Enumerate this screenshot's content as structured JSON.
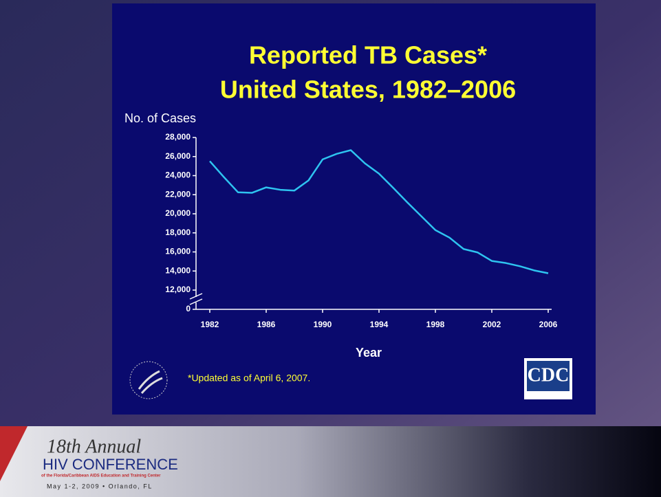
{
  "chart_data": {
    "type": "line",
    "title": [
      "Reported TB Cases*",
      "United States, 1982–2006"
    ],
    "ylabel": "No. of Cases",
    "xlabel": "Year",
    "footnote": "*Updated as of April 6, 2007.",
    "x": [
      1982,
      1983,
      1984,
      1985,
      1986,
      1987,
      1988,
      1989,
      1990,
      1991,
      1992,
      1993,
      1994,
      1995,
      1996,
      1997,
      1998,
      1999,
      2000,
      2001,
      2002,
      2003,
      2004,
      2005,
      2006
    ],
    "series": [
      {
        "color": "#2ec4f0",
        "values": [
          25520,
          23846,
          22255,
          22201,
          22768,
          22517,
          22436,
          23495,
          25701,
          26283,
          26673,
          25287,
          24205,
          22726,
          21210,
          19751,
          18286,
          17500,
          16308,
          15945,
          15055,
          14835,
          14499,
          14065,
          13767
        ]
      }
    ],
    "xlim": [
      1982,
      2006
    ],
    "xticks": [
      1982,
      1986,
      1990,
      1994,
      1998,
      2002,
      2006
    ],
    "ylim": [
      0,
      28000
    ],
    "axis_break": [
      0,
      12000
    ],
    "yticks": [
      0,
      {
        "value": 12000,
        "label": "12,000"
      },
      {
        "value": 14000,
        "label": "14,000"
      },
      {
        "value": 16000,
        "label": "16,000"
      },
      {
        "value": 18000,
        "label": "18,000"
      },
      {
        "value": 20000,
        "label": "20,000"
      },
      {
        "value": 22000,
        "label": "22,000"
      },
      {
        "value": 24000,
        "label": "24,000"
      },
      {
        "value": 26000,
        "label": "26,000"
      },
      {
        "value": 28000,
        "label": "28,000"
      }
    ],
    "grid": false,
    "logo": "CDC"
  },
  "banner": {
    "edition": "18th Annual",
    "name": "HIV CONFERENCE",
    "organizer": "of the Florida/Caribbean AIDS Education and Training Center",
    "date": "May 1-2, 2009 • Orlando, FL"
  }
}
